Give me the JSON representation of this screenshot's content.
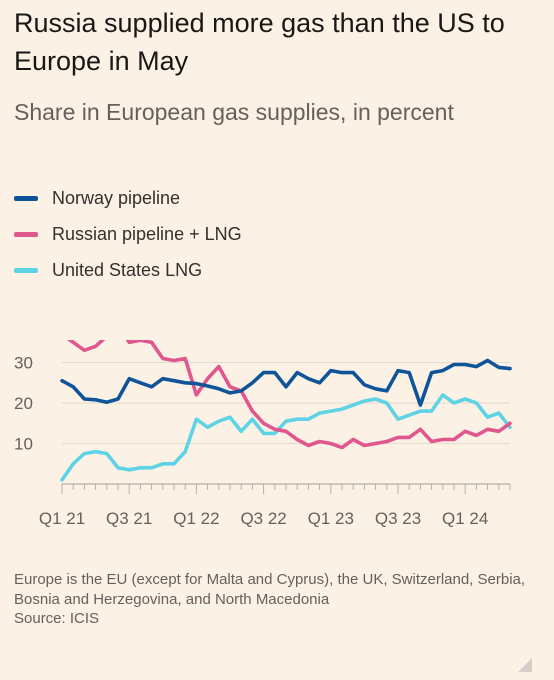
{
  "title": "Russia supplied more gas than the US to Europe in May",
  "subtitle": "Share in European gas supplies, in percent",
  "footnote": "Europe is the EU (except for Malta and Cyprus), the UK, Switzerland, Serbia, Bosnia and Herzegovina, and North Macedonia",
  "source": "Source: ICIS",
  "chart_data": {
    "type": "line",
    "ylim": [
      0,
      35
    ],
    "yticks": [
      10,
      20,
      30
    ],
    "grid": true,
    "legend_placement": "top-left",
    "x_start": "2021-01",
    "x_tick_labels": [
      "Q1 21",
      "Q3 21",
      "Q1 22",
      "Q3 22",
      "Q1 23",
      "Q3 23",
      "Q1 24"
    ],
    "series": [
      {
        "name": "Norway pipeline",
        "color": "#0f5499",
        "values": [
          25.5,
          24,
          21,
          20.8,
          20.2,
          21,
          26,
          25,
          24,
          26,
          25.5,
          25,
          24.8,
          24.2,
          23.5,
          22.5,
          23,
          25,
          27.5,
          27.5,
          24,
          27.5,
          26,
          25,
          28,
          27.5,
          27.5,
          24.5,
          23.5,
          23,
          28,
          27.5,
          19.5,
          27.5,
          28,
          29.5,
          29.5,
          29,
          30.5,
          28.8,
          28.5
        ]
      },
      {
        "name": "Russian pipeline + LNG",
        "color": "#e0578e",
        "values": [
          37,
          35,
          33,
          34,
          36.5,
          39.5,
          35,
          35.5,
          35,
          31,
          30.5,
          31,
          22,
          26,
          29,
          24,
          23,
          18,
          15,
          13.5,
          13,
          11,
          9.5,
          10.5,
          10,
          9,
          11,
          9.5,
          10,
          10.5,
          11.5,
          11.5,
          13.5,
          10.5,
          11,
          11,
          13,
          12,
          13.5,
          13,
          15
        ]
      },
      {
        "name": "United States LNG",
        "color": "#5fd3e6",
        "values": [
          1,
          5,
          7.5,
          8,
          7.5,
          4,
          3.5,
          4,
          4,
          5,
          5,
          8,
          16,
          14,
          15.5,
          16.5,
          13,
          16,
          12.5,
          12.5,
          15.5,
          16,
          16,
          17.5,
          18,
          18.5,
          19.5,
          20.5,
          21,
          20,
          16,
          17,
          18,
          18,
          22,
          20,
          21,
          20,
          16.5,
          17.5,
          14
        ]
      }
    ]
  }
}
